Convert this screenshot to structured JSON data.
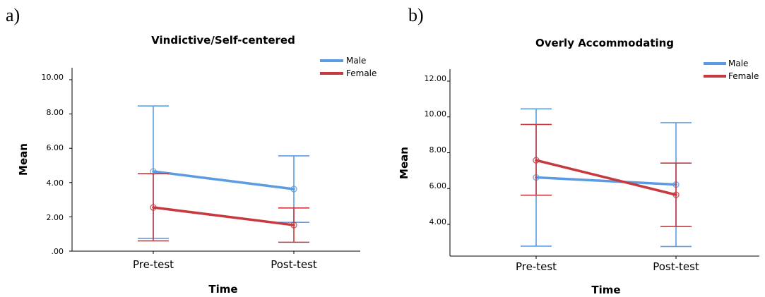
{
  "colors": {
    "male": "#5B9BE3",
    "female": "#C8393F"
  },
  "chart_data": [
    {
      "type": "line",
      "panel": "a)",
      "title": "Vindictive/Self-centered",
      "xlabel": "Time",
      "ylabel": "Mean",
      "categories": [
        "Pre-test",
        "Post-test"
      ],
      "ylim": [
        0,
        10
      ],
      "yticks": [
        0,
        2,
        4,
        6,
        8,
        10
      ],
      "ytick_labels": [
        ".00",
        "2.00",
        "4.00",
        "6.00",
        "8.00",
        "10.00"
      ],
      "grid": false,
      "legend": "top-right",
      "series": [
        {
          "name": "Male",
          "values": [
            4.65,
            3.62
          ],
          "error_low": [
            0.75,
            1.68
          ],
          "error_high": [
            8.47,
            5.56
          ]
        },
        {
          "name": "Female",
          "values": [
            2.55,
            1.52
          ],
          "error_low": [
            0.6,
            0.52
          ],
          "error_high": [
            4.52,
            2.52
          ]
        }
      ]
    },
    {
      "type": "line",
      "panel": "b)",
      "title": "Overly Accommodating",
      "xlabel": "Time",
      "ylabel": "Mean",
      "categories": [
        "Pre-test",
        "Post-test"
      ],
      "ylim": [
        2.6,
        12.4
      ],
      "yticks": [
        4,
        6,
        8,
        10,
        12
      ],
      "ytick_labels": [
        "4.00",
        "6.00",
        "8.00",
        "10.00",
        "12.00"
      ],
      "grid": false,
      "legend": "top-right",
      "series": [
        {
          "name": "Male",
          "values": [
            6.62,
            6.22
          ],
          "error_low": [
            2.78,
            2.76
          ],
          "error_high": [
            10.45,
            9.68
          ]
        },
        {
          "name": "Female",
          "values": [
            7.58,
            5.65
          ],
          "error_low": [
            5.63,
            3.88
          ],
          "error_high": [
            9.58,
            7.42
          ]
        }
      ]
    }
  ]
}
